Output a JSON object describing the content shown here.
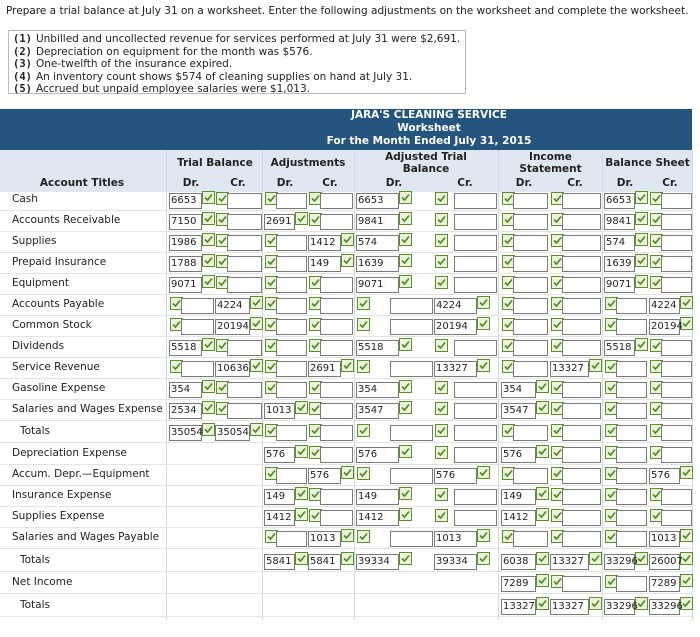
{
  "instructions": "Prepare a trial balance at July 31 on a worksheet. Enter the following adjustments on the worksheet and complete the worksheet.",
  "adjustments": [
    {
      "number": "(1)",
      "text": "Unbilled and uncollected revenue for services performed at July 31 were $2,691."
    },
    {
      "number": "(2)",
      "text": "Depreciation on equipment for the month was $576."
    },
    {
      "number": "(3)",
      "text": "One-twelfth of the insurance expired."
    },
    {
      "number": "(4)",
      "text": "An inventory count shows $574 of cleaning supplies on hand at July 31."
    },
    {
      "number": "(5)",
      "text": "Accrued but unpaid employee salaries were $1,013."
    }
  ],
  "worksheet": {
    "title": "JARA'S CLEANING SERVICE",
    "subtitle": "Worksheet",
    "period": "For the Month Ended July 31, 2015",
    "account_header": "Account Titles",
    "column_groups": [
      "Trial Balance",
      "Adjustments",
      "Adjusted Trial Balance",
      "Income Statement",
      "Balance Sheet"
    ],
    "sub_headers": [
      "Dr.",
      "Cr."
    ],
    "rows": [
      {
        "label": "Cash",
        "cells": [
          6653,
          null,
          null,
          null,
          6653,
          null,
          null,
          null,
          6653,
          null
        ]
      },
      {
        "label": "Accounts Receivable",
        "cells": [
          7150,
          null,
          2691,
          null,
          9841,
          null,
          null,
          null,
          9841,
          null
        ]
      },
      {
        "label": "Supplies",
        "cells": [
          1986,
          null,
          null,
          1412,
          574,
          null,
          null,
          null,
          574,
          null
        ]
      },
      {
        "label": "Prepaid Insurance",
        "cells": [
          1788,
          null,
          null,
          149,
          1639,
          null,
          null,
          null,
          1639,
          null
        ]
      },
      {
        "label": "Equipment",
        "cells": [
          9071,
          null,
          null,
          null,
          9071,
          null,
          null,
          null,
          9071,
          null
        ]
      },
      {
        "label": "Accounts Payable",
        "cells": [
          null,
          4224,
          null,
          null,
          null,
          4224,
          null,
          null,
          null,
          4224
        ]
      },
      {
        "label": "Common Stock",
        "cells": [
          null,
          20194,
          null,
          null,
          null,
          20194,
          null,
          null,
          null,
          20194
        ]
      },
      {
        "label": "Dividends",
        "cells": [
          5518,
          null,
          null,
          null,
          5518,
          null,
          null,
          null,
          5518,
          null
        ]
      },
      {
        "label": "Service Revenue",
        "cells": [
          null,
          10636,
          null,
          2691,
          null,
          13327,
          null,
          13327,
          null,
          null
        ]
      },
      {
        "label": "Gasoline Expense",
        "cells": [
          354,
          null,
          null,
          null,
          354,
          null,
          354,
          null,
          null,
          null
        ]
      },
      {
        "label": "Salaries and Wages Expense",
        "cells": [
          2534,
          null,
          1013,
          null,
          3547,
          null,
          3547,
          null,
          null,
          null
        ]
      },
      {
        "label": "Totals",
        "cells": [
          35054,
          35054,
          null,
          null,
          null,
          null,
          null,
          null,
          null,
          null
        ]
      },
      {
        "label": "Depreciation Expense",
        "cells": [
          null,
          null,
          576,
          null,
          576,
          null,
          576,
          null,
          null,
          null
        ]
      },
      {
        "label": "Accum. Depr.—Equipment",
        "cells": [
          null,
          null,
          null,
          576,
          null,
          576,
          null,
          null,
          null,
          576
        ]
      },
      {
        "label": "Insurance Expense",
        "cells": [
          null,
          null,
          149,
          null,
          149,
          null,
          149,
          null,
          null,
          null
        ]
      },
      {
        "label": "Supplies Expense",
        "cells": [
          null,
          null,
          1412,
          null,
          1412,
          null,
          1412,
          null,
          null,
          null
        ]
      },
      {
        "label": "Salaries and Wages Payable",
        "cells": [
          null,
          null,
          null,
          1013,
          null,
          1013,
          null,
          null,
          null,
          1013
        ]
      },
      {
        "label": "Totals",
        "cells": [
          null,
          null,
          5841,
          5841,
          39334,
          39334,
          6038,
          13327,
          33296,
          26007
        ]
      },
      {
        "label": "Net Income",
        "cells": [
          null,
          null,
          null,
          null,
          null,
          null,
          7289,
          null,
          null,
          7289
        ]
      },
      {
        "label": "Totals",
        "cells": [
          null,
          null,
          null,
          null,
          null,
          null,
          13327,
          13327,
          33296,
          33296
        ]
      }
    ]
  }
}
